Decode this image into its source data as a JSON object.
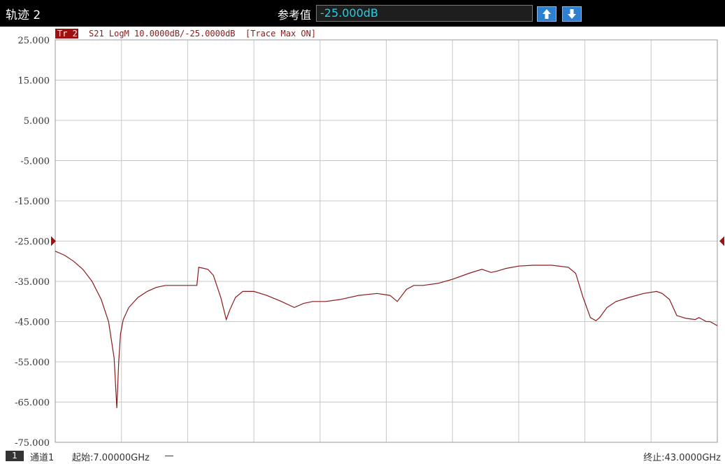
{
  "toolbar": {
    "title": "轨迹 2",
    "ref_label": "参考值",
    "ref_value": "-25.000dB",
    "up_icon": "arrow-up-icon",
    "down_icon": "arrow-down-icon"
  },
  "trace_header": {
    "tag": "Tr 2",
    "info": "S21 LogM 10.0000dB/-25.0000dB  [Trace Max ON]"
  },
  "footer": {
    "channel_number": "1",
    "channel_name": "通道1",
    "start": "起始:7.00000GHz",
    "stop": "终止:43.0000GHz"
  },
  "colors": {
    "trace": "#8b1a1a",
    "tag_bg": "#a01010",
    "grid": "#c8c8c8"
  },
  "chart_data": {
    "type": "line",
    "title": "",
    "xlabel": "",
    "ylabel": "",
    "xlim": [
      7.0,
      43.0
    ],
    "ylim": [
      -75,
      25
    ],
    "grid": true,
    "y_ticks": [
      "25.000",
      "15.000",
      "5.000",
      "-5.000",
      "-15.000",
      "-25.000",
      "-35.000",
      "-45.000",
      "-55.000",
      "-65.000",
      "-75.000"
    ],
    "reference_level": -25.0,
    "series": [
      {
        "x": [
          7.0,
          7.5,
          8.0,
          8.5,
          9.0,
          9.5,
          9.9,
          10.2,
          10.35,
          10.45,
          10.55,
          10.7,
          11.0,
          11.5,
          12.0,
          12.5,
          13.0,
          13.5,
          14.0,
          14.7,
          14.8,
          15.3,
          15.6,
          16.0,
          16.3,
          16.5,
          16.8,
          17.2,
          17.8,
          18.5,
          19.3,
          20.0,
          20.5,
          21.0,
          21.7,
          22.5,
          23.5,
          24.5,
          25.2,
          25.6,
          26.1,
          26.5,
          27.0,
          27.8,
          28.6,
          29.5,
          30.2,
          30.7,
          31.0,
          31.5,
          32.2,
          33.0,
          34.0,
          34.9,
          35.3,
          35.7,
          36.1,
          36.4,
          36.6,
          37.0,
          37.5,
          38.2,
          39.0,
          39.7,
          40.0,
          40.4,
          40.8,
          41.3,
          41.8,
          42.0,
          42.2,
          42.4,
          42.6,
          42.8,
          43.0
        ],
        "values": [
          -27.5,
          -28.5,
          -30.0,
          -32.0,
          -35.0,
          -39.5,
          -45.0,
          -54.0,
          -66.5,
          -55.0,
          -48.0,
          -44.5,
          -41.5,
          -39.0,
          -37.5,
          -36.5,
          -36.0,
          -36.0,
          -36.0,
          -36.0,
          -31.5,
          -32.0,
          -33.5,
          -39.0,
          -44.5,
          -42.0,
          -39.0,
          -37.5,
          -37.5,
          -38.5,
          -40.0,
          -41.5,
          -40.5,
          -40.0,
          -40.0,
          -39.5,
          -38.5,
          -38.0,
          -38.5,
          -40.0,
          -37.0,
          -36.0,
          -36.0,
          -35.5,
          -34.5,
          -33.0,
          -32.0,
          -32.8,
          -32.5,
          -31.8,
          -31.2,
          -31.0,
          -31.0,
          -31.5,
          -33.0,
          -39.0,
          -44.0,
          -44.8,
          -44.0,
          -41.5,
          -40.0,
          -39.0,
          -38.0,
          -37.5,
          -38.0,
          -39.5,
          -43.5,
          -44.2,
          -44.5,
          -44.0,
          -44.5,
          -45.0,
          -45.0,
          -45.5,
          -46.0
        ]
      }
    ]
  }
}
